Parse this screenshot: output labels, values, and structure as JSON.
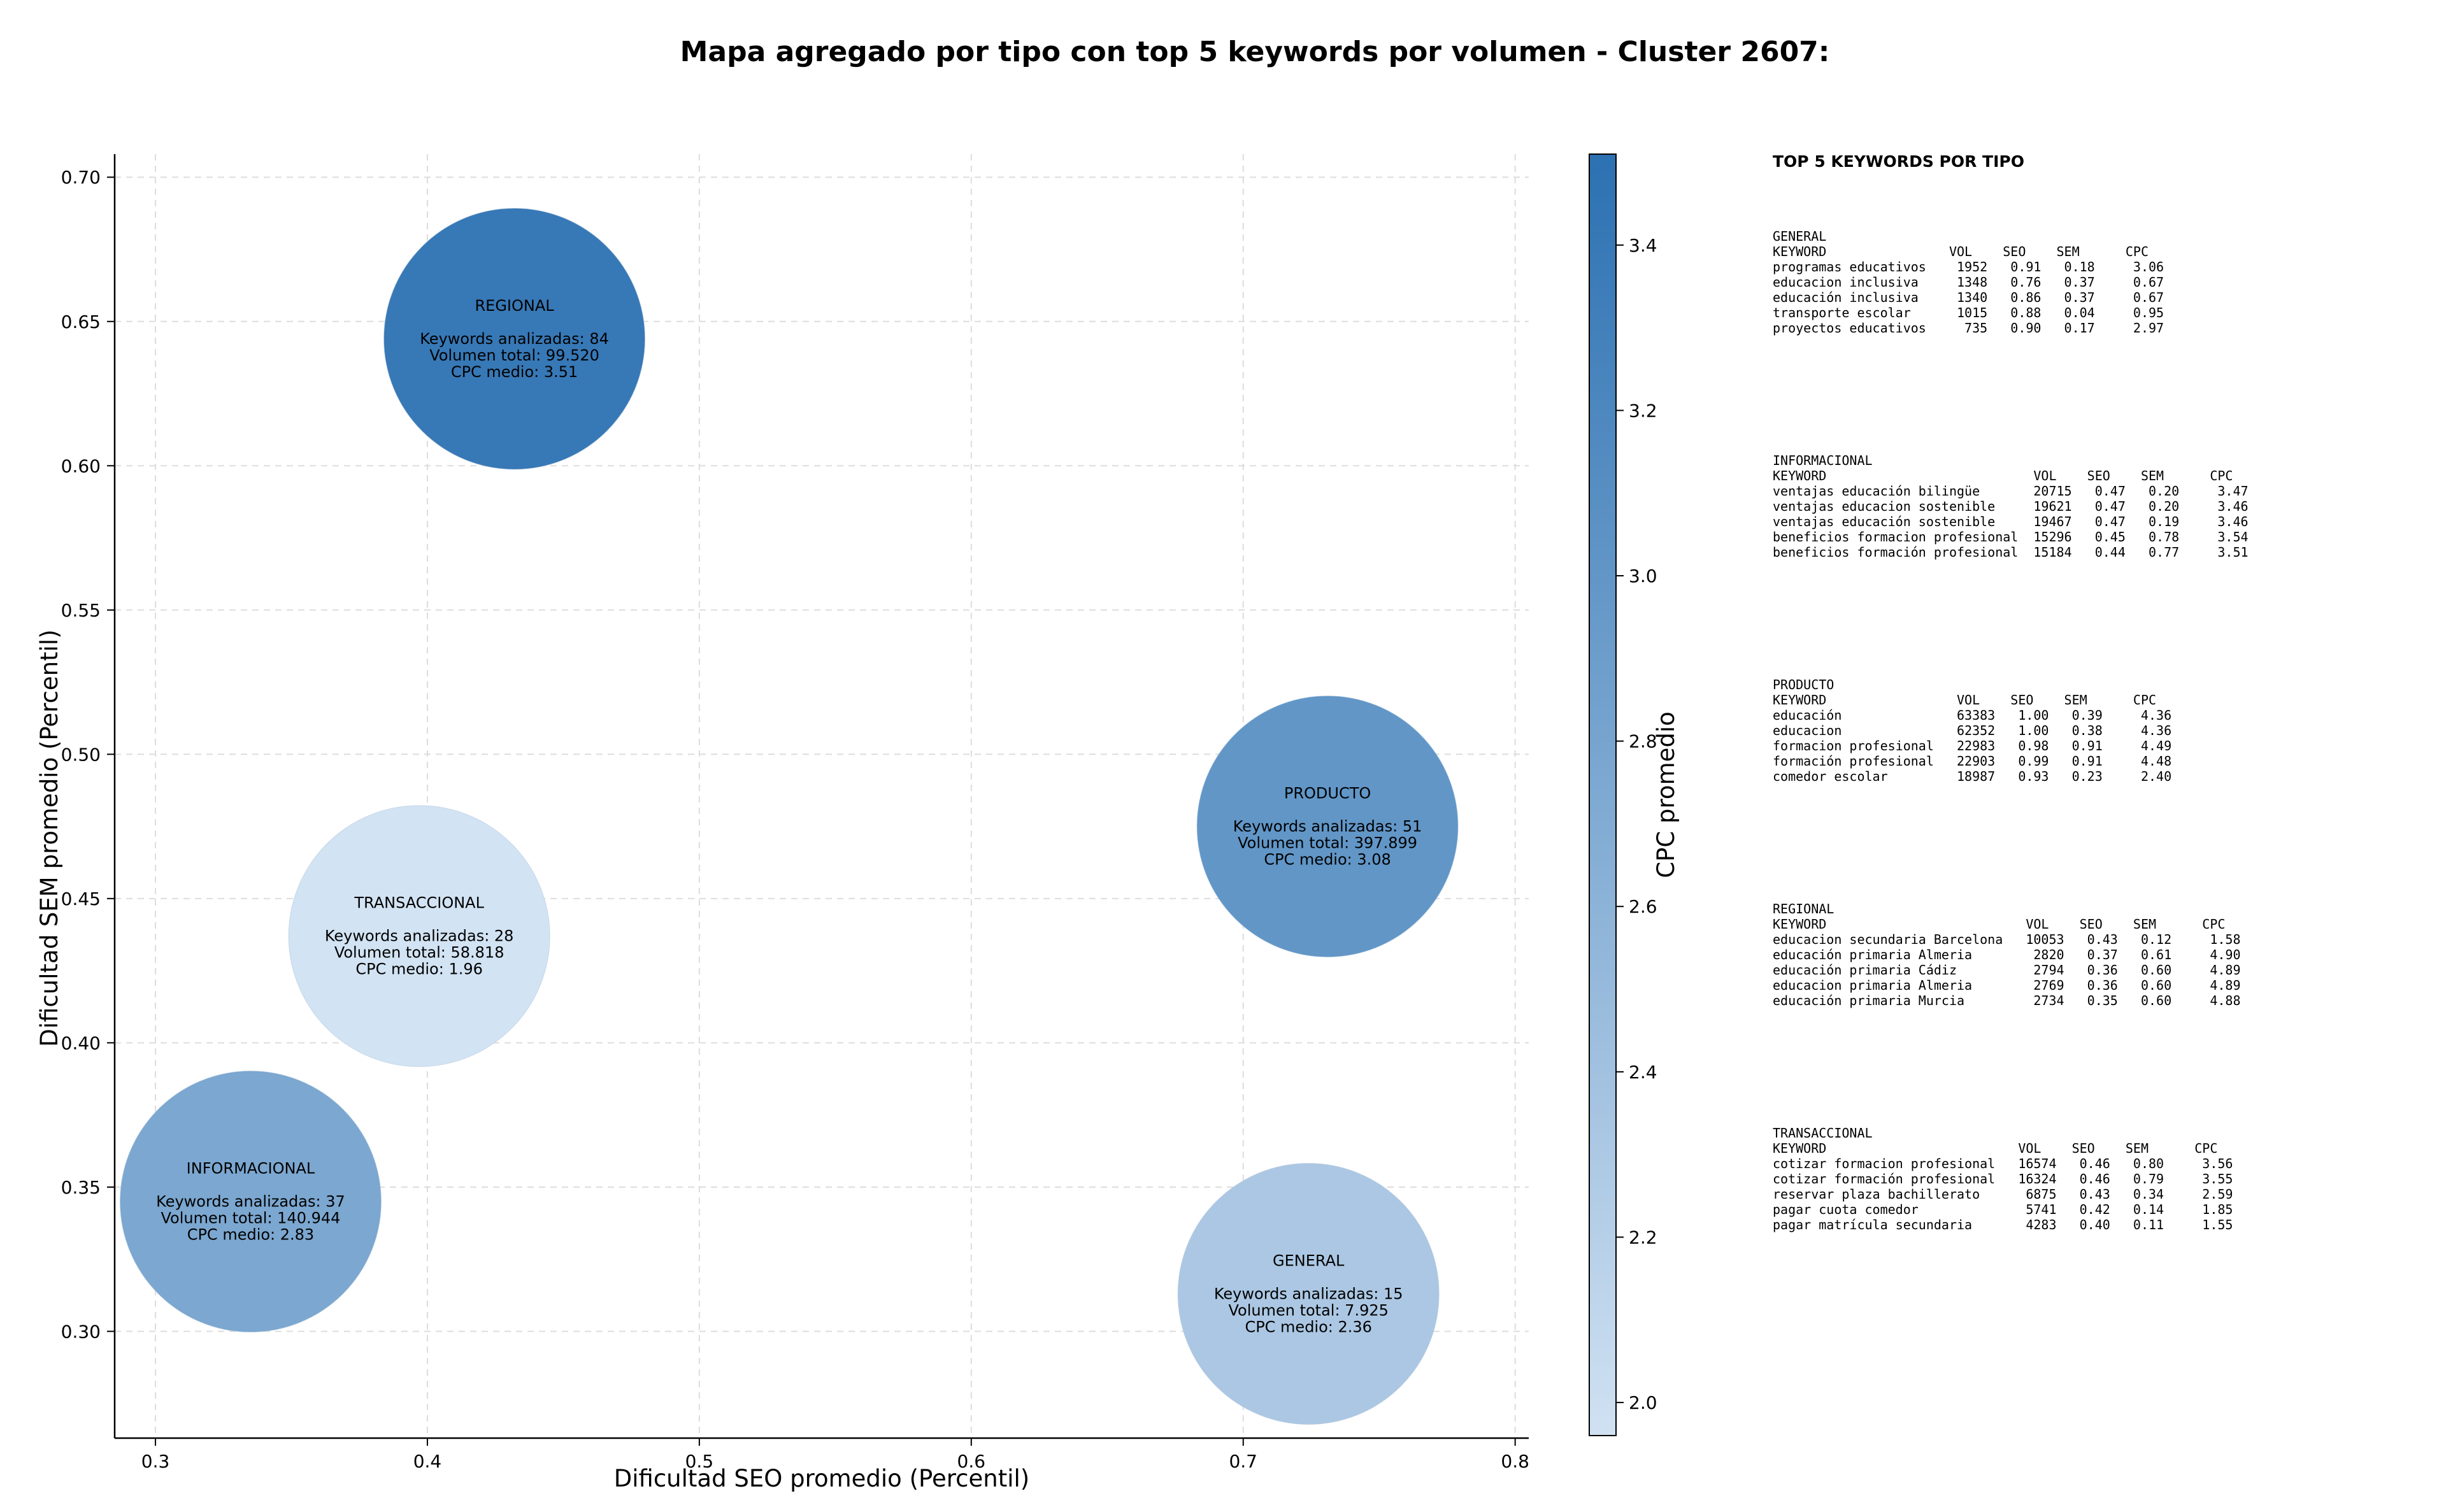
{
  "chart_data": {
    "type": "scatter",
    "title": "Mapa agregado por tipo con top 5 keywords por volumen - Cluster 2607:",
    "xlabel": "Dificultad SEO promedio (Percentil)",
    "ylabel": "Dificultad SEM promedio (Percentil)",
    "xlim": [
      0.285,
      0.805
    ],
    "ylim": [
      0.263,
      0.708
    ],
    "xticks": [
      "0.3",
      "0.4",
      "0.5",
      "0.6",
      "0.7",
      "0.8"
    ],
    "yticks": [
      "0.30",
      "0.35",
      "0.40",
      "0.45",
      "0.50",
      "0.55",
      "0.60",
      "0.65",
      "0.70"
    ],
    "grid": true,
    "colorbar": {
      "label": "CPC promedio",
      "range": [
        1.96,
        3.51
      ],
      "ticks": [
        "2.0",
        "2.2",
        "2.4",
        "2.6",
        "2.8",
        "3.0",
        "3.2",
        "3.4"
      ],
      "color_low": "#d0e1f2",
      "color_high": "#2c71b2"
    },
    "points": [
      {
        "name": "REGIONAL",
        "x": 0.432,
        "y": 0.644,
        "cpc": 3.51,
        "keywords": 84,
        "volume": 99520,
        "lines": [
          "REGIONAL",
          "",
          "Keywords analizadas: 84",
          "Volumen total: 99.520",
          "CPC medio: 3.51"
        ]
      },
      {
        "name": "PRODUCTO",
        "x": 0.731,
        "y": 0.475,
        "cpc": 3.08,
        "keywords": 51,
        "volume": 397899,
        "lines": [
          "PRODUCTO",
          "",
          "Keywords analizadas: 51",
          "Volumen total: 397.899",
          "CPC medio: 3.08"
        ]
      },
      {
        "name": "TRANSACCIONAL",
        "x": 0.397,
        "y": 0.437,
        "cpc": 1.96,
        "keywords": 28,
        "volume": 58818,
        "lines": [
          "TRANSACCIONAL",
          "",
          "Keywords analizadas: 28",
          "Volumen total: 58.818",
          "CPC medio: 1.96"
        ]
      },
      {
        "name": "INFORMACIONAL",
        "x": 0.335,
        "y": 0.345,
        "cpc": 2.83,
        "keywords": 37,
        "volume": 140944,
        "lines": [
          "INFORMACIONAL",
          "",
          "Keywords analizadas: 37",
          "Volumen total: 140.944",
          "CPC medio: 2.83"
        ]
      },
      {
        "name": "GENERAL",
        "x": 0.724,
        "y": 0.313,
        "cpc": 2.36,
        "keywords": 15,
        "volume": 7925,
        "lines": [
          "GENERAL",
          "",
          "Keywords analizadas: 15",
          "Volumen total: 7.925",
          "CPC medio: 2.36"
        ]
      }
    ]
  },
  "panel": {
    "title": "TOP 5 KEYWORDS POR TIPO",
    "groups": [
      {
        "lines": [
          "GENERAL",
          "KEYWORD                VOL    SEO    SEM      CPC",
          "programas educativos    1952   0.91   0.18     3.06",
          "educacion inclusiva     1348   0.76   0.37     0.67",
          "educación inclusiva     1340   0.86   0.37     0.67",
          "transporte escolar      1015   0.88   0.04     0.95",
          "proyectos educativos     735   0.90   0.17     2.97"
        ]
      },
      {
        "lines": [
          "INFORMACIONAL",
          "KEYWORD                           VOL    SEO    SEM      CPC",
          "ventajas educación bilingüe       20715   0.47   0.20     3.47",
          "ventajas educacion sostenible     19621   0.47   0.20     3.46",
          "ventajas educación sostenible     19467   0.47   0.19     3.46",
          "beneficios formacion profesional  15296   0.45   0.78     3.54",
          "beneficios formación profesional  15184   0.44   0.77     3.51"
        ]
      },
      {
        "lines": [
          "PRODUCTO",
          "KEYWORD                 VOL    SEO    SEM      CPC",
          "educación               63383   1.00   0.39     4.36",
          "educacion               62352   1.00   0.38     4.36",
          "formacion profesional   22983   0.98   0.91     4.49",
          "formación profesional   22903   0.99   0.91     4.48",
          "comedor escolar         18987   0.93   0.23     2.40"
        ]
      },
      {
        "lines": [
          "REGIONAL",
          "KEYWORD                          VOL    SEO    SEM      CPC",
          "educacion secundaria Barcelona   10053   0.43   0.12     1.58",
          "educación primaria Almeria        2820   0.37   0.61     4.90",
          "educación primaria Cádiz          2794   0.36   0.60     4.89",
          "educacion primaria Almeria        2769   0.36   0.60     4.89",
          "educación primaria Murcia         2734   0.35   0.60     4.88"
        ]
      },
      {
        "lines": [
          "TRANSACCIONAL",
          "KEYWORD                         VOL    SEO    SEM      CPC",
          "cotizar formacion profesional   16574   0.46   0.80     3.56",
          "cotizar formación profesional   16324   0.46   0.79     3.55",
          "reservar plaza bachillerato      6875   0.43   0.34     2.59",
          "pagar cuota comedor              5741   0.42   0.14     1.85",
          "pagar matrícula secundaria       4283   0.40   0.11     1.55"
        ]
      }
    ]
  }
}
